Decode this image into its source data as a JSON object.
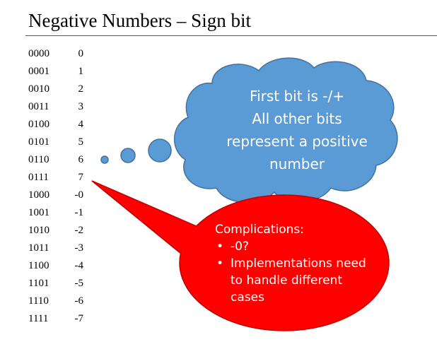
{
  "title": "Negative Numbers – Sign bit",
  "table": [
    {
      "bin": "0000",
      "dec": "0"
    },
    {
      "bin": "0001",
      "dec": "1"
    },
    {
      "bin": "0010",
      "dec": "2"
    },
    {
      "bin": "0011",
      "dec": "3"
    },
    {
      "bin": "0100",
      "dec": "4"
    },
    {
      "bin": "0101",
      "dec": "5"
    },
    {
      "bin": "0110",
      "dec": "6"
    },
    {
      "bin": "0111",
      "dec": "7"
    },
    {
      "bin": "1000",
      "dec": "-0"
    },
    {
      "bin": "1001",
      "dec": "-1"
    },
    {
      "bin": "1010",
      "dec": "-2"
    },
    {
      "bin": "1011",
      "dec": "-3"
    },
    {
      "bin": "1100",
      "dec": "-4"
    },
    {
      "bin": "1101",
      "dec": "-5"
    },
    {
      "bin": "1110",
      "dec": "-6"
    },
    {
      "bin": "1111",
      "dec": "-7"
    }
  ],
  "thought_bubble": {
    "lines": [
      "First bit is -/+",
      "All other bits",
      "represent a positive",
      "number"
    ],
    "color": "#5b9bd5"
  },
  "speech_bubble": {
    "heading": "Complications:",
    "bullets": [
      "-0?",
      "Implementations need to handle different cases"
    ],
    "color": "#ff0000"
  }
}
